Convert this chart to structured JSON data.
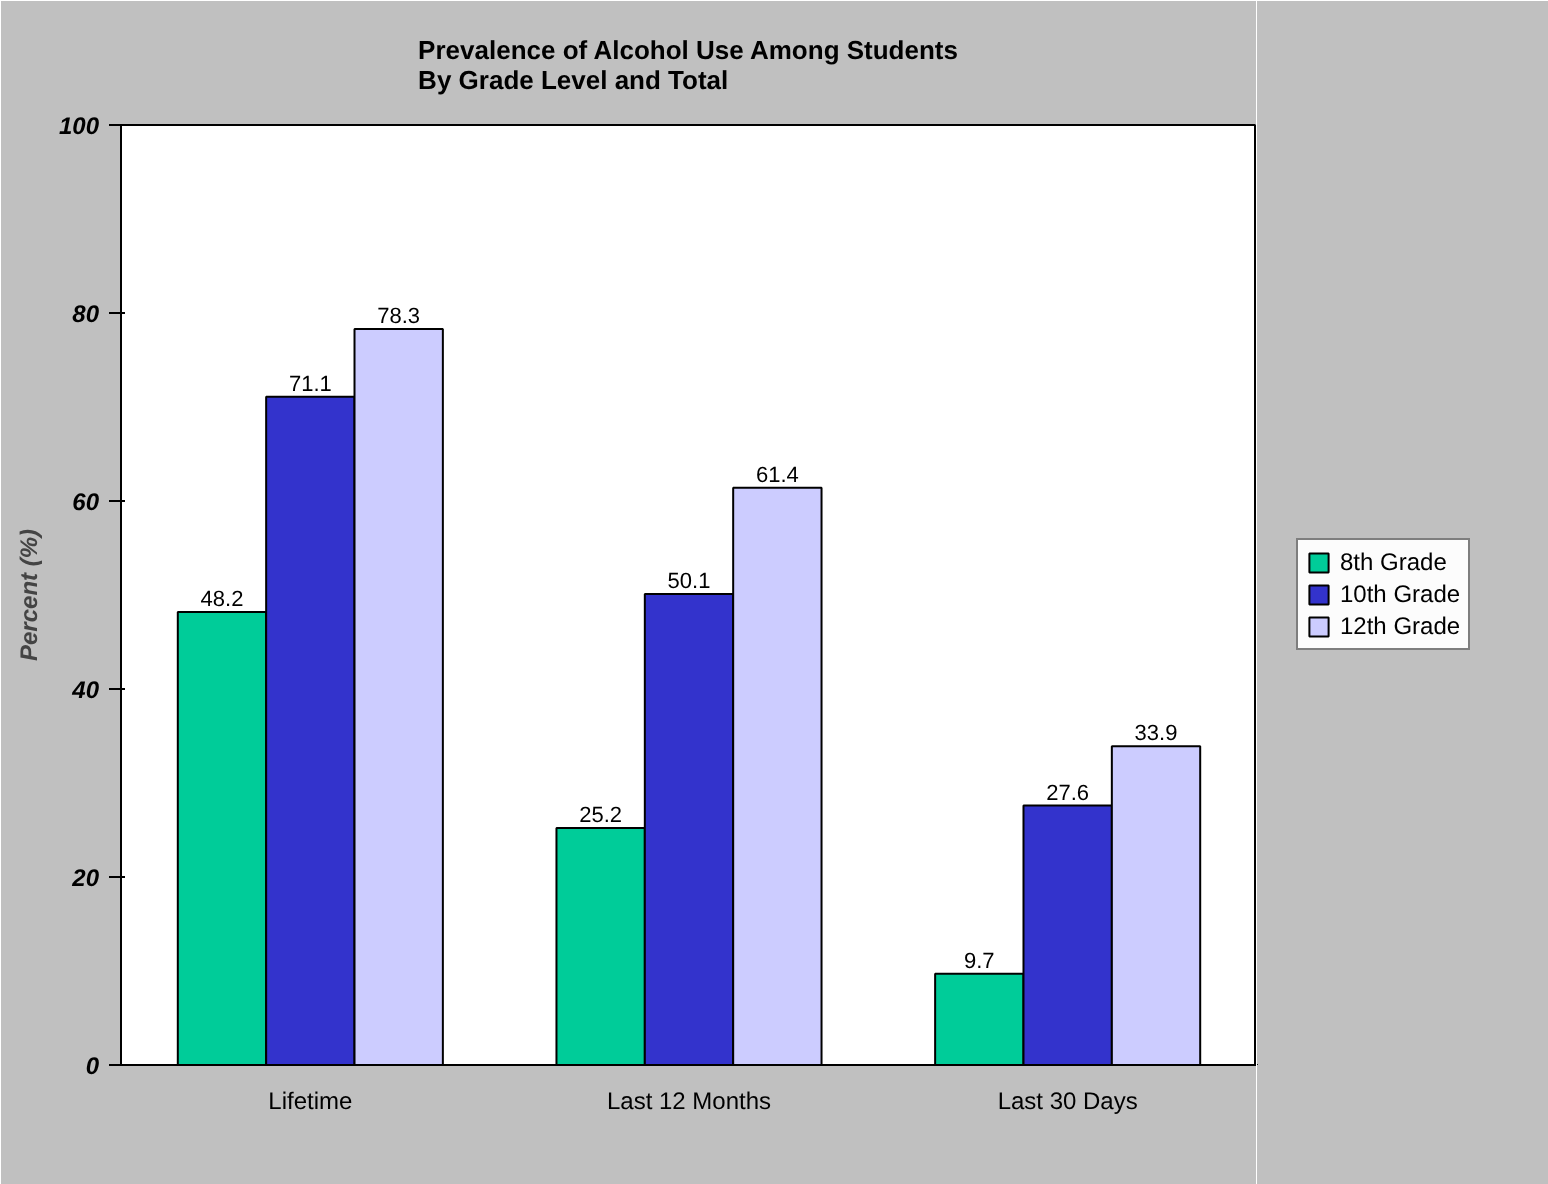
{
  "chart_data": {
    "type": "bar",
    "title": "Prevalence of Alcohol Use Among Students\nBy Grade Level and Total",
    "ylabel": "Percent (%)",
    "categories": [
      "Lifetime",
      "Last 12 Months",
      "Last 30 Days"
    ],
    "series": [
      {
        "name": "8th Grade",
        "color": "#00cc99",
        "values": [
          48.2,
          25.2,
          9.7
        ]
      },
      {
        "name": "10th Grade",
        "color": "#3333cc",
        "values": [
          71.1,
          50.1,
          27.6
        ]
      },
      {
        "name": "12th Grade",
        "color": "#ccccff",
        "values": [
          78.3,
          61.4,
          33.9
        ]
      }
    ],
    "ylim": [
      0,
      100
    ],
    "yticks": [
      0,
      20,
      40,
      60,
      80,
      100
    ],
    "grid": false,
    "legend": "right",
    "data_labels": true
  }
}
